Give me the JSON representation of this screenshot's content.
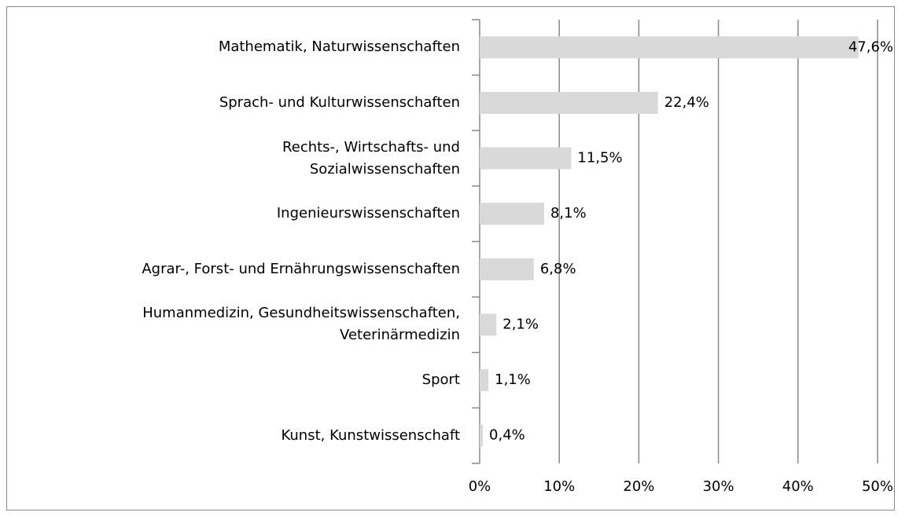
{
  "chart_data": {
    "type": "bar",
    "orientation": "horizontal",
    "categories": [
      "Mathematik, Naturwissenschaften",
      "Sprach- und Kulturwissenschaften",
      "Rechts-, Wirtschafts- und\nSozialwissenschaften",
      "Ingenieurswissenschaften",
      "Agrar-, Forst- und Ernährungswissenschaften",
      "Humanmedizin, Gesundheitswissenschaften,\nVeterinärmedizin",
      "Sport",
      "Kunst, Kunstwissenschaft"
    ],
    "values": [
      47.6,
      22.4,
      11.5,
      8.1,
      6.8,
      2.1,
      1.1,
      0.4
    ],
    "value_labels": [
      "47,6%",
      "22,4%",
      "11,5%",
      "8,1%",
      "6,8%",
      "2,1%",
      "1,1%",
      "0,4%"
    ],
    "color": "#d9d9d9",
    "xlim": [
      0,
      50
    ],
    "xticks": [
      {
        "value": 0,
        "label": "0%"
      },
      {
        "value": 10,
        "label": "10%"
      },
      {
        "value": 20,
        "label": "20%"
      },
      {
        "value": 30,
        "label": "30%"
      },
      {
        "value": 40,
        "label": "40%"
      },
      {
        "value": 50,
        "label": "50%"
      }
    ],
    "grid": true
  }
}
